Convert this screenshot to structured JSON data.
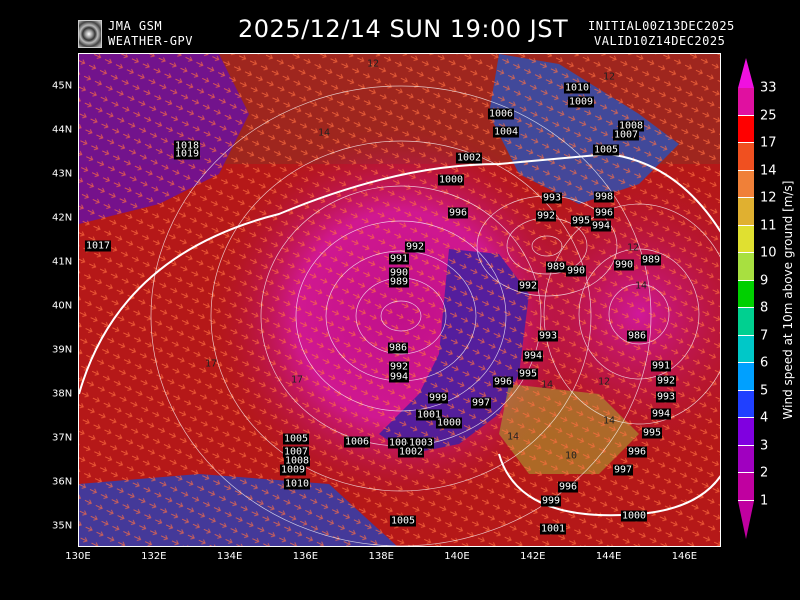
{
  "header": {
    "logo_line1": "JMA GSM",
    "logo_line2": "WEATHER-GPV",
    "title": "2025/12/14 SUN 19:00 JST",
    "initial": "INITIAL00Z13DEC2025",
    "valid": "VALID10Z14DEC2025"
  },
  "map": {
    "lat_ticks": [
      "45N",
      "44N",
      "43N",
      "42N",
      "41N",
      "40N",
      "39N",
      "38N",
      "37N",
      "36N",
      "35N"
    ],
    "lon_ticks": [
      "130E",
      "132E",
      "134E",
      "136E",
      "138E",
      "140E",
      "142E",
      "144E",
      "146E"
    ],
    "pressure_labels": [
      "1010",
      "1009",
      "1006",
      "1004",
      "1008",
      "1007",
      "1005",
      "1002",
      "1000",
      "996",
      "992",
      "991",
      "990",
      "989",
      "993",
      "992",
      "998",
      "996",
      "995",
      "994",
      "989",
      "990",
      "990",
      "989",
      "992",
      "1018",
      "1019",
      "1017",
      "986",
      "992",
      "994",
      "993",
      "994",
      "995",
      "996",
      "997",
      "999",
      "1001",
      "1000",
      "986",
      "991",
      "992",
      "993",
      "994",
      "995",
      "996",
      "997",
      "996",
      "999",
      "1000",
      "1001",
      "1005",
      "1007",
      "1008",
      "1009",
      "1010",
      "1006",
      "1004",
      "1003",
      "1002",
      "1005"
    ],
    "wind_labels": [
      "14",
      "12",
      "12",
      "17",
      "17",
      "14",
      "12",
      "14",
      "12",
      "14",
      "10",
      "14"
    ]
  },
  "colorbar": {
    "title": "Wind speed at 10m above ground [m/s]",
    "labels": [
      "33",
      "25",
      "17",
      "14",
      "12",
      "11",
      "10",
      "9",
      "8",
      "7",
      "6",
      "5",
      "4",
      "3",
      "2",
      "1"
    ],
    "colors": [
      "#f010e0",
      "#e010a0",
      "#ff0000",
      "#f05020",
      "#f08038",
      "#e0b030",
      "#e0e030",
      "#a8e040",
      "#00d000",
      "#00d090",
      "#00c8c8",
      "#00a0ff",
      "#2040ff",
      "#8000e0",
      "#a000c0",
      "#c000a0"
    ]
  }
}
